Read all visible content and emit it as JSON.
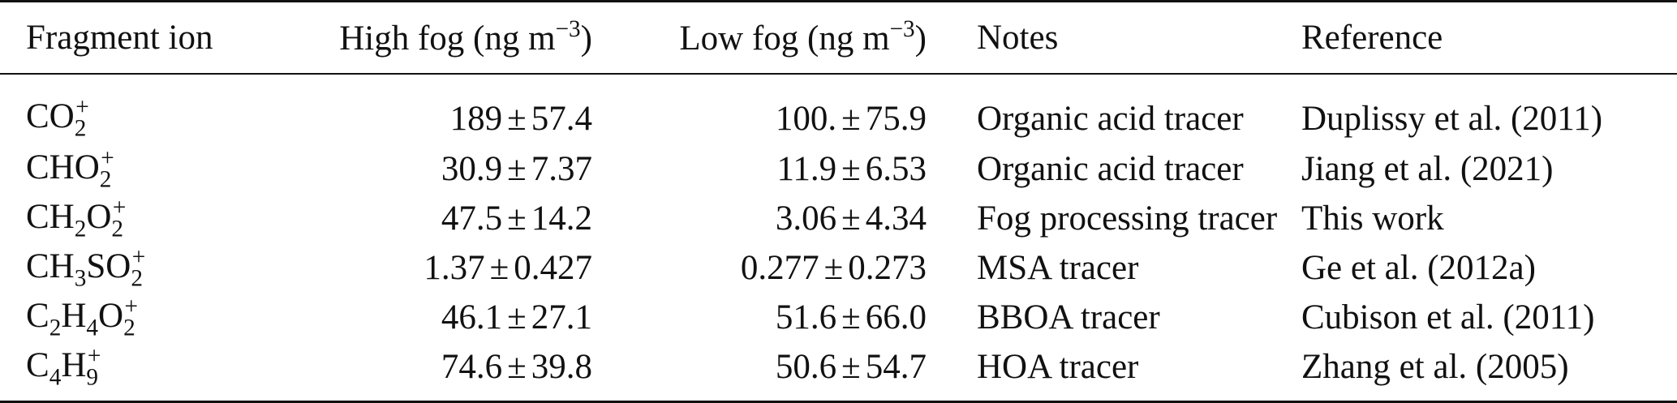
{
  "table": {
    "headers": {
      "ion": "Fragment ion",
      "high": "High fog (ng m",
      "high_exp": "−3",
      "high_close": ")",
      "low": "Low fog (ng m",
      "low_exp": "−3",
      "low_close": ")",
      "notes": "Notes",
      "reference": "Reference"
    },
    "rows": [
      {
        "ion_parts": [
          "CO",
          "",
          "2",
          "+"
        ],
        "high_mean": "189",
        "high_err": "57.4",
        "low_mean": "100.",
        "low_err": "75.9",
        "notes": "Organic acid tracer",
        "reference": "Duplissy et al. (2011)"
      },
      {
        "ion_parts": [
          "CHO",
          "",
          "2",
          "+"
        ],
        "high_mean": "30.9",
        "high_err": "7.37",
        "low_mean": "11.9",
        "low_err": "6.53",
        "notes": "Organic acid tracer",
        "reference": "Jiang et al. (2021)"
      },
      {
        "ion_parts": [
          "CH",
          "2",
          "O",
          "2",
          "+"
        ],
        "high_mean": "47.5",
        "high_err": "14.2",
        "low_mean": "3.06",
        "low_err": "4.34",
        "notes": "Fog processing tracer",
        "reference": "This work"
      },
      {
        "ion_parts": [
          "CH",
          "3",
          "SO",
          "2",
          "+"
        ],
        "high_mean": "1.37",
        "high_err": "0.427",
        "low_mean": "0.277",
        "low_err": "0.273",
        "notes": "MSA tracer",
        "reference": "Ge et al. (2012a)"
      },
      {
        "ion_parts": [
          "C",
          "2",
          "H",
          "4",
          "O",
          "2",
          "+"
        ],
        "high_mean": "46.1",
        "high_err": "27.1",
        "low_mean": "51.6",
        "low_err": "66.0",
        "notes": "BBOA tracer",
        "reference": "Cubison et al. (2011)"
      },
      {
        "ion_parts": [
          "C",
          "4",
          "H",
          "9",
          "+"
        ],
        "high_mean": "74.6",
        "high_err": "39.8",
        "low_mean": "50.6",
        "low_err": "54.7",
        "notes": "HOA tracer",
        "reference": "Zhang et al. (2005)"
      }
    ],
    "pm_symbol": "±"
  }
}
